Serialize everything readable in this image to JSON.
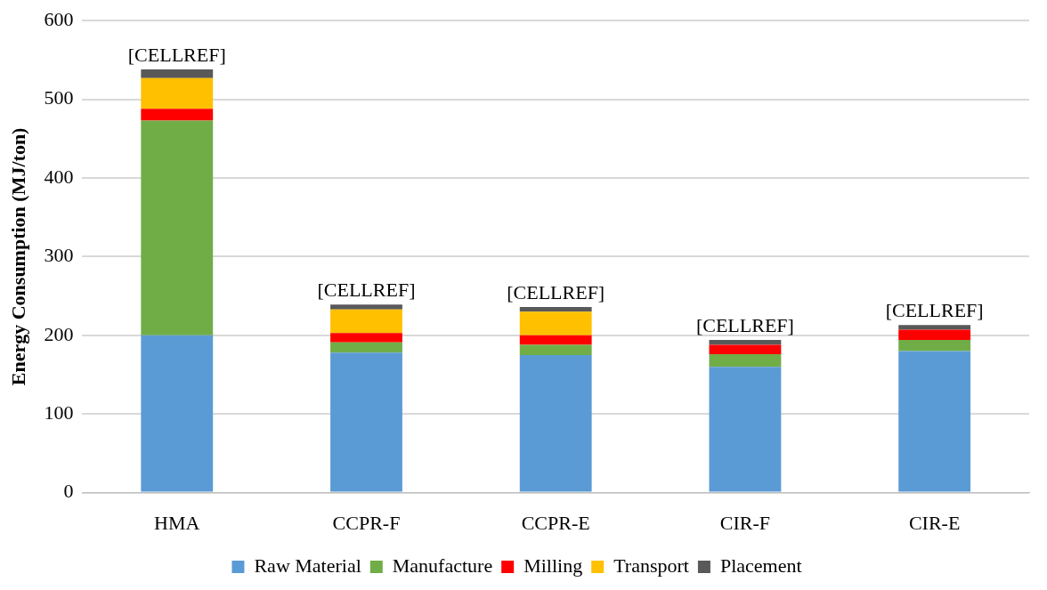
{
  "chart_data": {
    "type": "bar",
    "stacked": true,
    "ylabel": "Energy Consumption (MJ/ton)",
    "categories": [
      "HMA",
      "CCPR-F",
      "CCPR-E",
      "CIR-F",
      "CIR-E"
    ],
    "series": [
      {
        "name": "Raw Material",
        "color": "#5b9bd5",
        "values": [
          200,
          178,
          175,
          160,
          180
        ]
      },
      {
        "name": "Manufacture",
        "color": "#70ad47",
        "values": [
          273,
          13,
          13,
          16,
          14
        ]
      },
      {
        "name": "Milling",
        "color": "#ff0000",
        "values": [
          15,
          12,
          12,
          12,
          13
        ]
      },
      {
        "name": "Transport",
        "color": "#ffc000",
        "values": [
          39,
          30,
          30,
          0,
          0
        ]
      },
      {
        "name": "Placement",
        "color": "#595959",
        "values": [
          11,
          6,
          6,
          6,
          6
        ]
      }
    ],
    "totals": [
      "[CELLREF]",
      "[CELLREF]",
      "[CELLREF]",
      "[CELLREF]",
      "[CELLREF]"
    ],
    "ylim": [
      0,
      600
    ],
    "yticks": [
      0,
      100,
      200,
      300,
      400,
      500,
      600
    ],
    "grid": "y",
    "legend": "bottom"
  }
}
